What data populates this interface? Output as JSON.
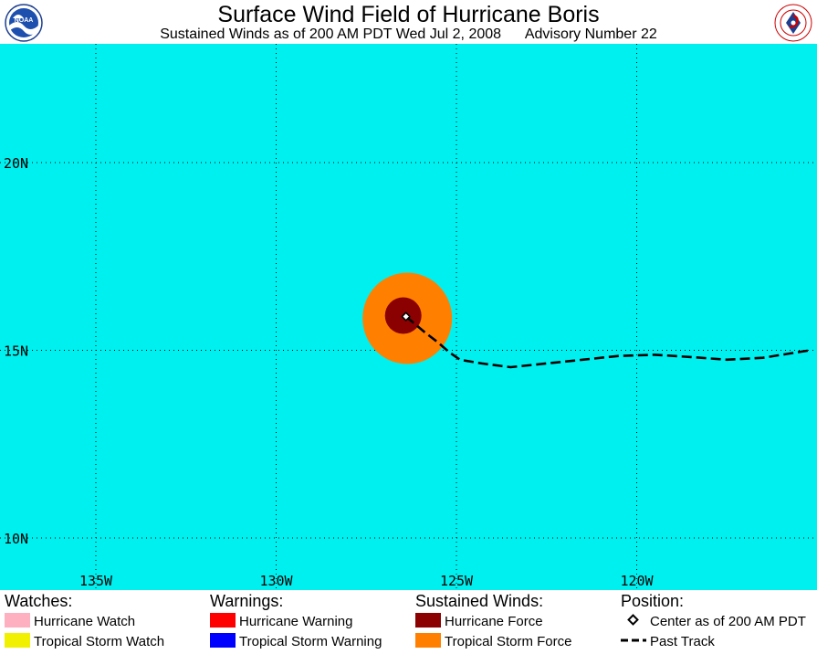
{
  "header": {
    "title": "Surface Wind Field of Hurricane Boris",
    "subtitle": "Sustained Winds as of 200 AM PDT Wed Jul 2, 2008      Advisory Number 22",
    "left_logo_icon": "noaa-logo-icon",
    "right_logo_icon": "national-weather-service-logo-icon"
  },
  "map": {
    "ocean_color": "#00f0f0",
    "lat_labels": [
      "20N",
      "15N",
      "10N"
    ],
    "lon_labels": [
      "135W",
      "130W",
      "125W",
      "120W"
    ],
    "center": {
      "lon": -126.4,
      "lat": 15.9
    },
    "hurricane_force_color": "#8b0000",
    "tropical_storm_force_color": "#ff8000",
    "past_track": [
      [
        -126.4,
        15.9
      ],
      [
        -125.9,
        15.5
      ],
      [
        -125.5,
        15.2
      ],
      [
        -125.2,
        14.95
      ],
      [
        -124.9,
        14.75
      ],
      [
        -124.3,
        14.65
      ],
      [
        -123.5,
        14.55
      ],
      [
        -122.5,
        14.65
      ],
      [
        -121.5,
        14.75
      ],
      [
        -120.5,
        14.85
      ],
      [
        -119.5,
        14.88
      ],
      [
        -118.5,
        14.82
      ],
      [
        -117.5,
        14.75
      ],
      [
        -116.5,
        14.8
      ],
      [
        -115.2,
        15.0
      ]
    ]
  },
  "legend": {
    "watches": {
      "heading": "Watches:",
      "items": [
        {
          "label": "Hurricane Watch",
          "color": "#ffb0c0"
        },
        {
          "label": "Tropical Storm Watch",
          "color": "#f0f000"
        }
      ]
    },
    "warnings": {
      "heading": "Warnings:",
      "items": [
        {
          "label": "Hurricane Warning",
          "color": "#ff0000"
        },
        {
          "label": "Tropical Storm Warning",
          "color": "#0000ff"
        }
      ]
    },
    "winds": {
      "heading": "Sustained Winds:",
      "items": [
        {
          "label": "Hurricane Force",
          "color": "#8b0000"
        },
        {
          "label": "Tropical Storm Force",
          "color": "#ff8000"
        }
      ]
    },
    "position": {
      "heading": "Position:",
      "items": [
        {
          "label": "Center as of 200 AM PDT",
          "icon": "diamond-icon"
        },
        {
          "label": "Past Track",
          "icon": "dashed-line-icon"
        }
      ]
    }
  }
}
